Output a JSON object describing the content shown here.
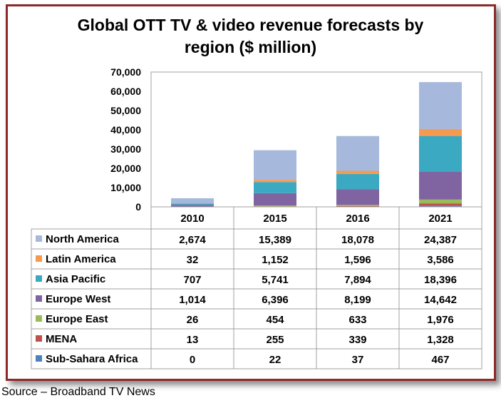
{
  "chart_data": {
    "type": "bar",
    "stacked": true,
    "title": "Global OTT TV & video revenue forecasts by region ($ million)",
    "title_lines": [
      "Global OTT TV & video revenue forecasts by",
      "region ($ million)"
    ],
    "categories": [
      "2010",
      "2015",
      "2016",
      "2021"
    ],
    "y_ticks": [
      "70,000",
      "60,000",
      "50,000",
      "40,000",
      "30,000",
      "20,000",
      "10,000",
      "0"
    ],
    "ylim": [
      0,
      70000
    ],
    "legend_placement": "data-table",
    "series": [
      {
        "name": "North America",
        "color": "#a6b9dc",
        "values": [
          2674,
          15389,
          18078,
          24387
        ],
        "labels": [
          "2,674",
          "15,389",
          "18,078",
          "24,387"
        ]
      },
      {
        "name": "Latin America",
        "color": "#f59a4e",
        "values": [
          32,
          1152,
          1596,
          3586
        ],
        "labels": [
          "32",
          "1,152",
          "1,596",
          "3,586"
        ]
      },
      {
        "name": "Asia Pacific",
        "color": "#3aa9c1",
        "values": [
          707,
          5741,
          7894,
          18396
        ],
        "labels": [
          "707",
          "5,741",
          "7,894",
          "18,396"
        ]
      },
      {
        "name": "Europe West",
        "color": "#8064a2",
        "values": [
          1014,
          6396,
          8199,
          14642
        ],
        "labels": [
          "1,014",
          "6,396",
          "8,199",
          "14,642"
        ]
      },
      {
        "name": "Europe East",
        "color": "#9bbb59",
        "values": [
          26,
          454,
          633,
          1976
        ],
        "labels": [
          "26",
          "454",
          "633",
          "1,976"
        ]
      },
      {
        "name": "MENA",
        "color": "#c0504d",
        "values": [
          13,
          255,
          339,
          1328
        ],
        "labels": [
          "13",
          "255",
          "339",
          "1,328"
        ]
      },
      {
        "name": "Sub-Sahara Africa",
        "color": "#4f81bd",
        "values": [
          0,
          22,
          37,
          467
        ],
        "labels": [
          "0",
          "22",
          "37",
          "467"
        ]
      }
    ]
  },
  "source": "Source – Broadband TV News"
}
